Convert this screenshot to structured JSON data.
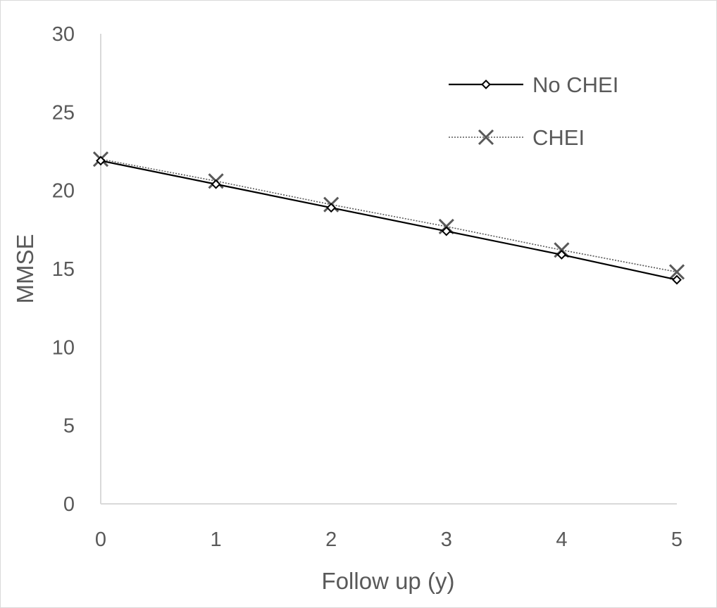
{
  "chart_data": {
    "type": "line",
    "title": "",
    "xlabel": "Follow up (y)",
    "ylabel": "MMSE",
    "x": [
      0,
      1,
      2,
      3,
      4,
      5
    ],
    "xlim": [
      0,
      5
    ],
    "ylim": [
      0,
      30
    ],
    "yticks": [
      0,
      5,
      10,
      15,
      20,
      25,
      30
    ],
    "xticks": [
      0,
      1,
      2,
      3,
      4,
      5
    ],
    "grid": false,
    "legend_position": "top-right",
    "series": [
      {
        "name": "No CHEI",
        "values": [
          21.9,
          20.4,
          18.9,
          17.4,
          15.9,
          14.3
        ],
        "line_style": "solid",
        "marker": "diamond",
        "color": "#000000"
      },
      {
        "name": "CHEI",
        "values": [
          22.0,
          20.6,
          19.1,
          17.7,
          16.2,
          14.8
        ],
        "line_style": "dotted",
        "marker": "x",
        "color": "#595959"
      }
    ]
  }
}
